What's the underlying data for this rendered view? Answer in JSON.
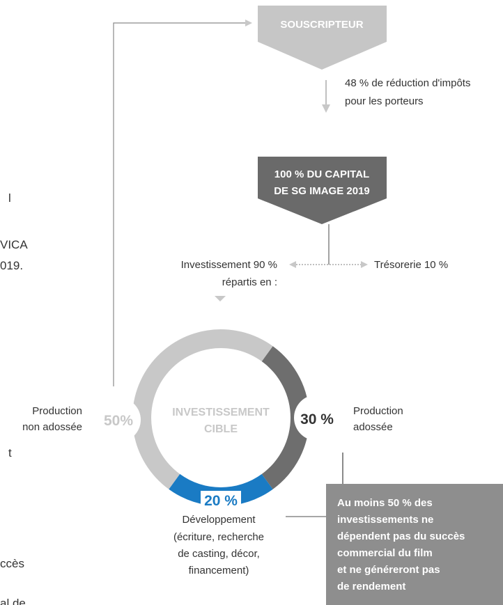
{
  "subscriber": "SOUSCRIPTEUR",
  "tax_note": [
    "48 % de réduction d'impôts",
    "pour les porteurs"
  ],
  "capital": [
    "100 % DU CAPITAL",
    "DE SG IMAGE 2019"
  ],
  "investment": [
    "Investissement 90 %",
    "répartis en :"
  ],
  "treasury": "Trésorerie 10 %",
  "donut": {
    "center_label": [
      "INVESTISSEMENT",
      "CIBLE"
    ],
    "values": [
      50,
      30,
      20
    ],
    "value_labels": [
      "50%",
      "30 %",
      "20 %"
    ],
    "colors": [
      "#c8c8c8",
      "#6e6e6e",
      "#1a7bc4"
    ],
    "segment_labels": [
      [
        "Production",
        "non adossée"
      ],
      [
        "Production",
        "adossée"
      ],
      [
        "Développement",
        "(écriture, recherche",
        "de casting, décor,",
        "financement)"
      ]
    ]
  },
  "note_box": [
    "Au moins 50 % des",
    "investissements ne",
    "dépendent pas du succès",
    "commercial du film",
    "et ne généreront pas",
    "de rendement"
  ],
  "left_fragments": [
    "l",
    "VICA",
    "019.",
    "t",
    "ccès",
    "al de"
  ]
}
